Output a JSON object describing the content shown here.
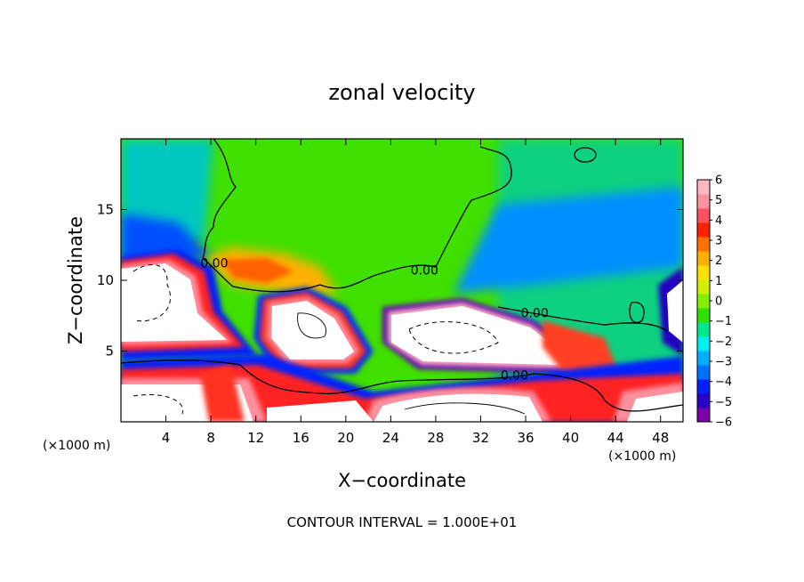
{
  "chart_data": {
    "type": "heatmap",
    "title": "zonal velocity",
    "xlabel": "X−coordinate",
    "ylabel": "Z−coordinate",
    "x_unit_label": "(×1000 m)",
    "x_unit_label_right": "(×1000 m)",
    "xlim": [
      0,
      50
    ],
    "ylim": [
      0,
      20
    ],
    "x_ticks": [
      "4",
      "8",
      "12",
      "16",
      "20",
      "24",
      "28",
      "32",
      "36",
      "40",
      "44",
      "48"
    ],
    "y_ticks": [
      "5",
      "10",
      "15"
    ],
    "x_tick_values": [
      4,
      8,
      12,
      16,
      20,
      24,
      28,
      32,
      36,
      40,
      44,
      48
    ],
    "y_tick_values": [
      5,
      10,
      15
    ],
    "colorbar": {
      "min": -6,
      "max": 6,
      "tick_labels": [
        "6",
        "5",
        "4",
        "3",
        "2",
        "1",
        "0",
        "−1",
        "−2",
        "−3",
        "−4",
        "−5",
        "−6"
      ],
      "tick_values": [
        6,
        5,
        4,
        3,
        2,
        1,
        0,
        -1,
        -2,
        -3,
        -4,
        -5,
        -6
      ],
      "colors": [
        "#7a00a8",
        "#2a00c8",
        "#0020ff",
        "#0070ff",
        "#00b0ff",
        "#00f0f0",
        "#00e890",
        "#30e000",
        "#80f000",
        "#d0f000",
        "#ffe000",
        "#ffb000",
        "#ff7000",
        "#ff2000",
        "#ff5060",
        "#ff90a0",
        "#ffb8c0"
      ]
    },
    "contour_labels": [
      {
        "text": "0.00",
        "x": 27.0,
        "y": 10.4
      },
      {
        "text": "0.00",
        "x": 36.8,
        "y": 7.4
      },
      {
        "text": "0.00",
        "x": 35.0,
        "y": 3.0
      },
      {
        "text": "0.00",
        "x": 8.3,
        "y": 10.9
      }
    ],
    "annotation": "CONTOUR INTERVAL = 1.000E+01",
    "grid": false
  }
}
